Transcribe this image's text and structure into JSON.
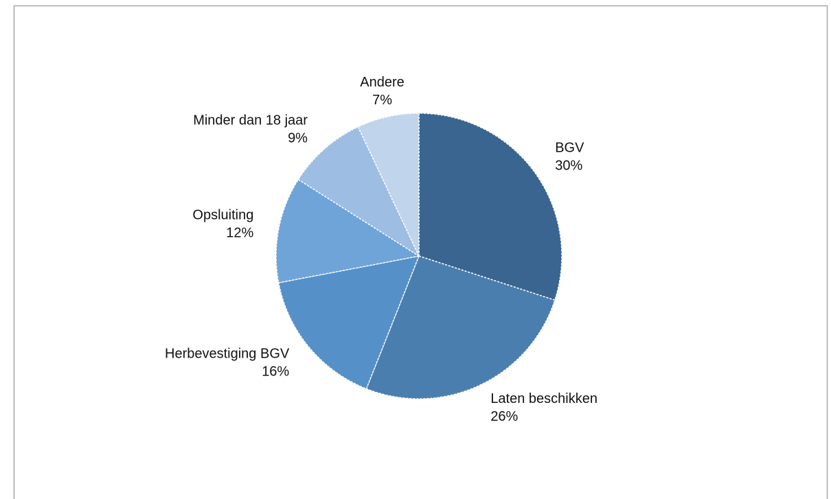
{
  "chart_data": {
    "type": "pie",
    "categories": [
      "BGV",
      "Laten beschikken",
      "Herbevestiging BGV",
      "Opsluiting",
      "Minder dan 18 jaar",
      "Andere"
    ],
    "values": [
      30,
      26,
      16,
      12,
      9,
      7
    ],
    "value_labels": [
      "30%",
      "26%",
      "16%",
      "12%",
      "9%",
      "7%"
    ],
    "colors": [
      "#3a6590",
      "#4a7eaf",
      "#5591c8",
      "#6fa4d9",
      "#9dbde3",
      "#c0d4eb"
    ]
  }
}
